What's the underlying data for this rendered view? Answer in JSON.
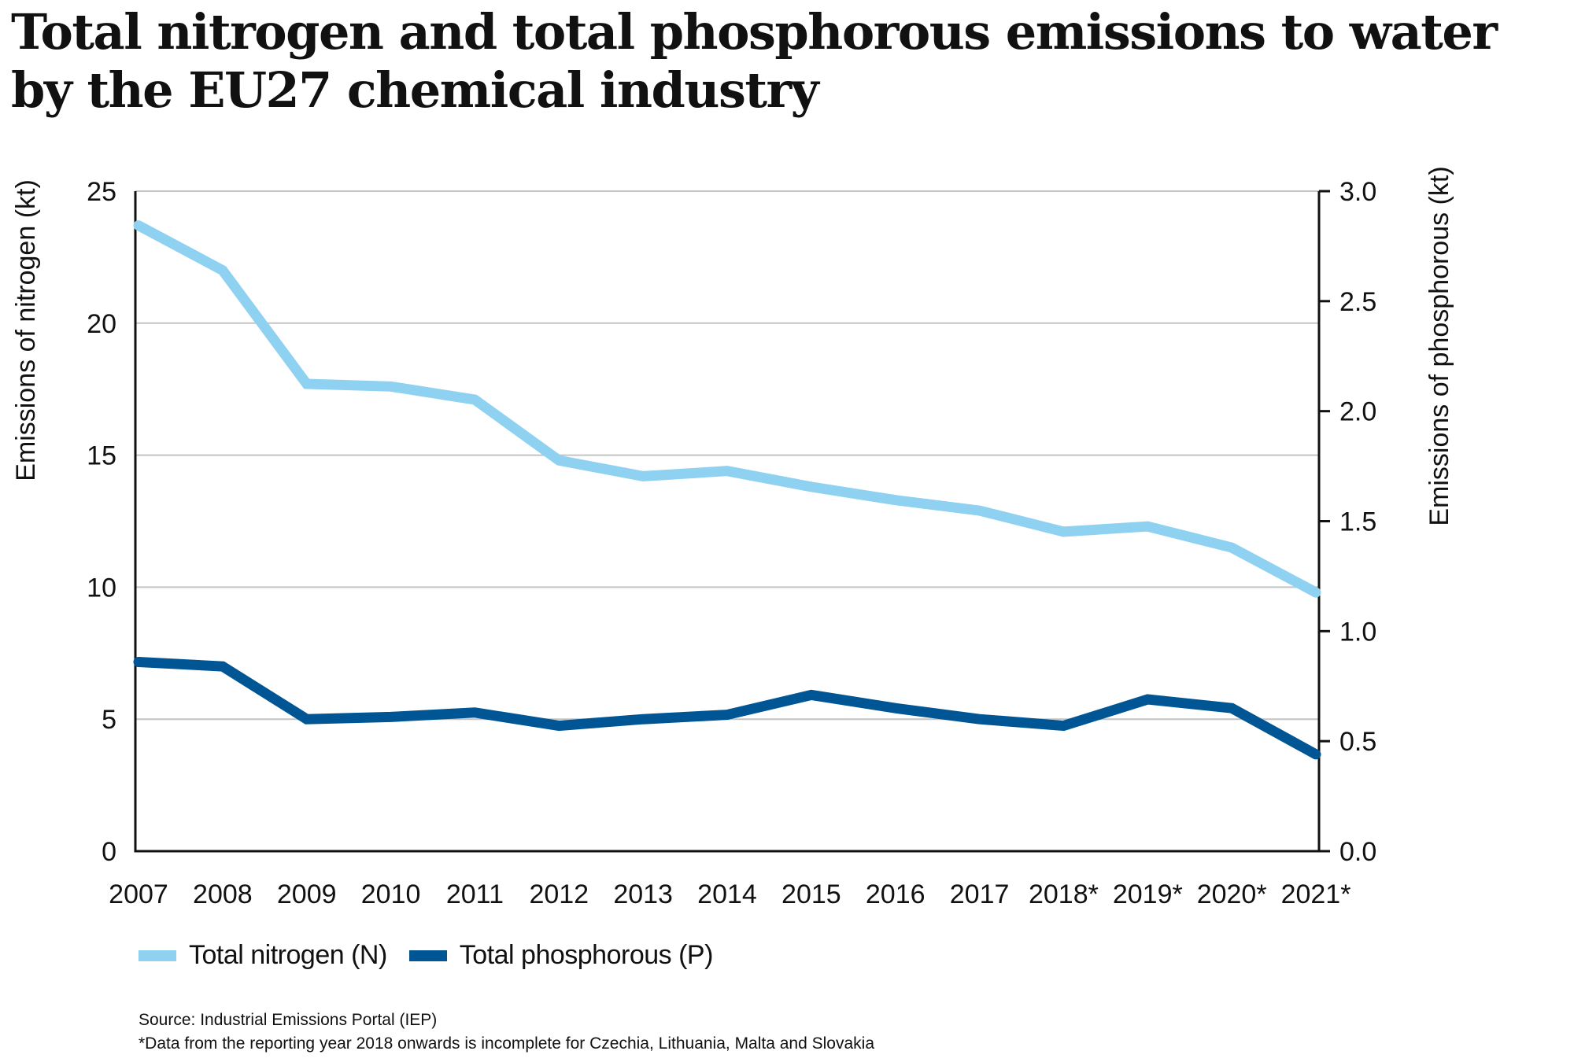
{
  "title_lines": [
    "Total nitrogen and total phosphorous emissions to water",
    "by the EU27 chemical industry"
  ],
  "chart_data": {
    "type": "line",
    "title": "Total nitrogen and total phosphorous emissions to water by the EU27 chemical industry",
    "categories": [
      "2007",
      "2008",
      "2009",
      "2010",
      "2011",
      "2012",
      "2013",
      "2014",
      "2015",
      "2016",
      "2017",
      "2018*",
      "2019*",
      "2020*",
      "2021*"
    ],
    "series": [
      {
        "name": "Total nitrogen (N)",
        "axis": "left",
        "color": "#8ed1f1",
        "values": [
          23.7,
          22.0,
          17.7,
          17.6,
          17.1,
          14.8,
          14.2,
          14.4,
          13.8,
          13.3,
          12.9,
          12.1,
          12.3,
          11.5,
          9.8
        ]
      },
      {
        "name": "Total phosphorous (P)",
        "axis": "right",
        "color": "#005595",
        "values": [
          0.86,
          0.84,
          0.6,
          0.61,
          0.63,
          0.57,
          0.6,
          0.62,
          0.71,
          0.65,
          0.6,
          0.57,
          0.69,
          0.65,
          0.44
        ]
      }
    ],
    "ylabel": "Emissions of nitrogen (kt)",
    "ylabel_right": "Emissions of phosphorous (kt)",
    "xlabel": "",
    "ylim": [
      0,
      25
    ],
    "ylim_right": [
      0,
      3.0
    ],
    "yticks": [
      "0",
      "5",
      "10",
      "15",
      "20",
      "25"
    ],
    "yticks_right": [
      "0.0",
      "0.5",
      "1.0",
      "1.5",
      "2.0",
      "2.5",
      "3.0"
    ],
    "grid": true,
    "legend_position": "bottom-left"
  },
  "legend": [
    {
      "label": "Total nitrogen (N)",
      "color": "#8ed1f1"
    },
    {
      "label": "Total phosphorous (P)",
      "color": "#005595"
    }
  ],
  "footer": {
    "source": "Source: Industrial Emissions Portal (IEP)",
    "note": "*Data from the reporting year 2018 onwards is incomplete for Czechia, Lithuania, Malta and Slovakia"
  }
}
